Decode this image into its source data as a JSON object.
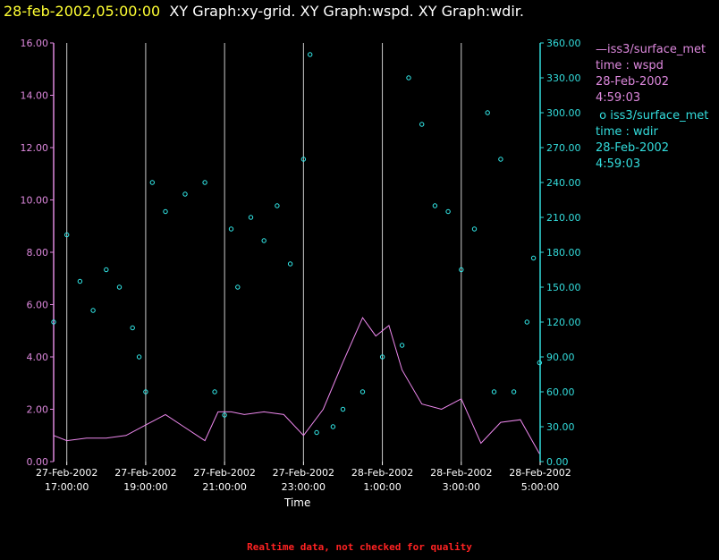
{
  "header": {
    "timestamp": "28-feb-2002,05:00:00",
    "graphs": "XY Graph:xy-grid.  XY Graph:wspd.  XY Graph:wdir."
  },
  "legend": {
    "series1": {
      "line1": "iss3/surface_met",
      "line2": "time : wspd",
      "line3": "28-Feb-2002",
      "line4": "4:59:03"
    },
    "series2": {
      "line1": "iss3/surface_met",
      "line2": "time : wdir",
      "line3": "28-Feb-2002",
      "line4": "4:59:03"
    }
  },
  "footer": "Realtime data, not checked for quality",
  "chart_data": {
    "type": "line",
    "xlabel": "Time",
    "x_range": [
      "27-Feb-2002 16:40:00",
      "28-Feb-2002 05:00:00"
    ],
    "x_ticks": [
      {
        "date": "27-Feb-2002",
        "time": "17:00:00"
      },
      {
        "date": "27-Feb-2002",
        "time": "19:00:00"
      },
      {
        "date": "27-Feb-2002",
        "time": "21:00:00"
      },
      {
        "date": "27-Feb-2002",
        "time": "23:00:00"
      },
      {
        "date": "28-Feb-2002",
        "time": "1:00:00"
      },
      {
        "date": "28-Feb-2002",
        "time": "3:00:00"
      },
      {
        "date": "28-Feb-2002",
        "time": "5:00:00"
      }
    ],
    "y_left": {
      "ylim": [
        0,
        16
      ],
      "ticks": [
        "0.00",
        "2.00",
        "4.00",
        "6.00",
        "8.00",
        "10.00",
        "12.00",
        "14.00",
        "16.00"
      ],
      "color": "#dd88dd"
    },
    "y_right": {
      "ylim": [
        0,
        360
      ],
      "ticks": [
        "0.00",
        "30.00",
        "60.00",
        "90.00",
        "120.00",
        "150.00",
        "180.00",
        "210.00",
        "240.00",
        "270.00",
        "300.00",
        "330.00",
        "360.00"
      ],
      "color": "#33dddd"
    },
    "grid": "vertical",
    "series": [
      {
        "name": "wspd",
        "style": "line",
        "axis": "left",
        "color": "#ee88ee",
        "points": [
          [
            "27-Feb-2002 16:40",
            1.0
          ],
          [
            "27-Feb-2002 17:00",
            0.8
          ],
          [
            "27-Feb-2002 17:30",
            0.9
          ],
          [
            "27-Feb-2002 18:00",
            0.9
          ],
          [
            "27-Feb-2002 18:30",
            1.0
          ],
          [
            "27-Feb-2002 19:00",
            1.4
          ],
          [
            "27-Feb-2002 19:30",
            1.8
          ],
          [
            "27-Feb-2002 20:00",
            1.3
          ],
          [
            "27-Feb-2002 20:30",
            0.8
          ],
          [
            "27-Feb-2002 20:50",
            1.9
          ],
          [
            "27-Feb-2002 21:10",
            1.9
          ],
          [
            "27-Feb-2002 21:30",
            1.8
          ],
          [
            "27-Feb-2002 22:00",
            1.9
          ],
          [
            "27-Feb-2002 22:30",
            1.8
          ],
          [
            "27-Feb-2002 23:00",
            1.0
          ],
          [
            "27-Feb-2002 23:30",
            2.0
          ],
          [
            "28-Feb-2002 00:00",
            3.8
          ],
          [
            "28-Feb-2002 00:30",
            5.5
          ],
          [
            "28-Feb-2002 00:50",
            4.8
          ],
          [
            "28-Feb-2002 01:10",
            5.2
          ],
          [
            "28-Feb-2002 01:30",
            3.5
          ],
          [
            "28-Feb-2002 02:00",
            2.2
          ],
          [
            "28-Feb-2002 02:30",
            2.0
          ],
          [
            "28-Feb-2002 03:00",
            2.4
          ],
          [
            "28-Feb-2002 03:30",
            0.7
          ],
          [
            "28-Feb-2002 04:00",
            1.5
          ],
          [
            "28-Feb-2002 04:30",
            1.6
          ],
          [
            "28-Feb-2002 04:59",
            0.3
          ]
        ]
      },
      {
        "name": "wdir",
        "style": "scatter",
        "axis": "right",
        "color": "#33eeee",
        "points": [
          [
            "27-Feb-2002 16:40",
            120
          ],
          [
            "27-Feb-2002 17:00",
            195
          ],
          [
            "27-Feb-2002 17:20",
            155
          ],
          [
            "27-Feb-2002 17:40",
            130
          ],
          [
            "27-Feb-2002 18:00",
            165
          ],
          [
            "27-Feb-2002 18:20",
            150
          ],
          [
            "27-Feb-2002 18:40",
            115
          ],
          [
            "27-Feb-2002 18:50",
            90
          ],
          [
            "27-Feb-2002 19:00",
            60
          ],
          [
            "27-Feb-2002 19:10",
            240
          ],
          [
            "27-Feb-2002 19:30",
            215
          ],
          [
            "27-Feb-2002 20:00",
            230
          ],
          [
            "27-Feb-2002 20:30",
            240
          ],
          [
            "27-Feb-2002 20:45",
            60
          ],
          [
            "27-Feb-2002 21:00",
            40
          ],
          [
            "27-Feb-2002 21:10",
            200
          ],
          [
            "27-Feb-2002 21:20",
            150
          ],
          [
            "27-Feb-2002 21:40",
            210
          ],
          [
            "27-Feb-2002 22:00",
            190
          ],
          [
            "27-Feb-2002 22:20",
            220
          ],
          [
            "27-Feb-2002 22:40",
            170
          ],
          [
            "27-Feb-2002 23:00",
            260
          ],
          [
            "27-Feb-2002 23:10",
            350
          ],
          [
            "27-Feb-2002 23:20",
            25
          ],
          [
            "27-Feb-2002 23:45",
            30
          ],
          [
            "28-Feb-2002 00:00",
            45
          ],
          [
            "28-Feb-2002 00:30",
            60
          ],
          [
            "28-Feb-2002 01:00",
            90
          ],
          [
            "28-Feb-2002 01:30",
            100
          ],
          [
            "28-Feb-2002 01:40",
            330
          ],
          [
            "28-Feb-2002 02:00",
            290
          ],
          [
            "28-Feb-2002 02:20",
            220
          ],
          [
            "28-Feb-2002 02:40",
            215
          ],
          [
            "28-Feb-2002 03:00",
            165
          ],
          [
            "28-Feb-2002 03:20",
            200
          ],
          [
            "28-Feb-2002 03:40",
            300
          ],
          [
            "28-Feb-2002 03:50",
            60
          ],
          [
            "28-Feb-2002 04:00",
            260
          ],
          [
            "28-Feb-2002 04:20",
            60
          ],
          [
            "28-Feb-2002 04:40",
            120
          ],
          [
            "28-Feb-2002 04:50",
            175
          ],
          [
            "28-Feb-2002 04:59",
            85
          ]
        ]
      }
    ]
  }
}
